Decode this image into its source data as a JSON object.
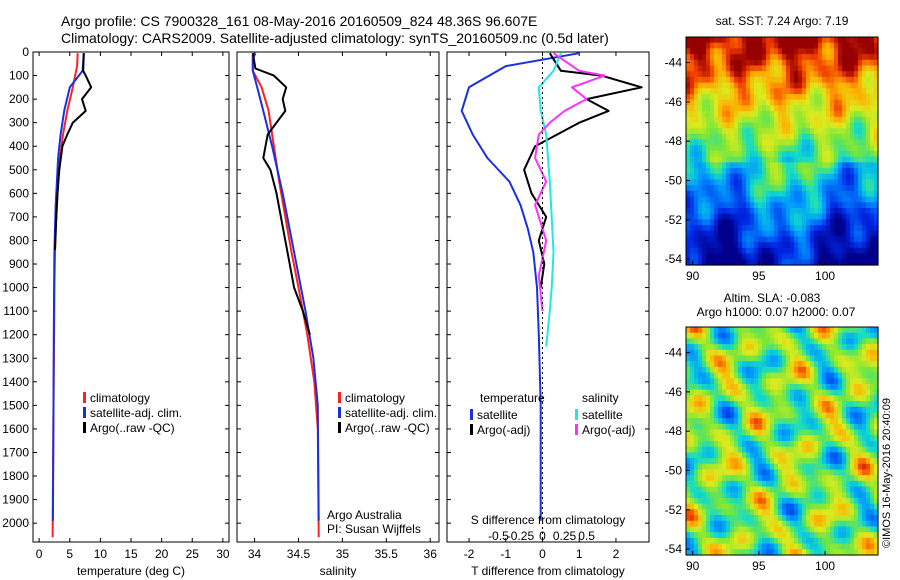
{
  "title_line1": "Argo profile: CS 7900328_161 08-May-2016 20160509_824 48.36S 96.607E",
  "title_line2": "Climatology: CARS2009. Satellite-adjusted climatology: synTS_20160509.nc (0.5d later)",
  "colors": {
    "climatology": "#ff2020",
    "satellite": "#1a2fe0",
    "argo": "#000000",
    "sal_satellite": "#20e8e8",
    "sal_argo": "#ff30ff"
  },
  "chart_data": [
    {
      "type": "line",
      "name": "temperature-panel",
      "xlabel": "temperature (deg C)",
      "ylabel": "",
      "xlim": [
        -1,
        31
      ],
      "ylim": [
        2080,
        0
      ],
      "xticks": [
        0,
        5,
        10,
        15,
        20,
        25,
        30
      ],
      "yticks": [
        0,
        100,
        200,
        300,
        400,
        500,
        600,
        700,
        800,
        900,
        1000,
        1100,
        1200,
        1300,
        1400,
        1500,
        1600,
        1700,
        1800,
        1900,
        2000
      ],
      "legend": [
        "climatology",
        "satellite-adj. clim.",
        "Argo(..raw -QC)"
      ],
      "series": [
        {
          "name": "climatology",
          "color": "#ff2020",
          "x": [
            6.3,
            6.2,
            5.5,
            4.6,
            3.9,
            3.4,
            3.1,
            2.9,
            2.7,
            2.6,
            2.5,
            2.45,
            2.35,
            2.2
          ],
          "y": [
            5,
            60,
            150,
            250,
            350,
            450,
            550,
            650,
            750,
            850,
            1000,
            1200,
            1500,
            2060
          ]
        },
        {
          "name": "satellite-adj. clim.",
          "color": "#1a2fe0",
          "x": [
            7.3,
            7.1,
            5.0,
            4.1,
            3.5,
            3.1,
            2.9,
            2.7,
            2.6,
            2.5,
            2.45,
            2.4,
            2.35,
            2.25
          ],
          "y": [
            5,
            80,
            150,
            250,
            350,
            450,
            550,
            650,
            750,
            850,
            1000,
            1200,
            1500,
            1990
          ]
        },
        {
          "name": "Argo",
          "color": "#000000",
          "x": [
            7.3,
            7.2,
            7.6,
            8.5,
            7.0,
            7.6,
            5.5,
            4.6,
            3.8,
            3.3,
            3.0,
            2.8,
            2.6
          ],
          "y": [
            5,
            80,
            100,
            150,
            200,
            250,
            300,
            350,
            400,
            500,
            600,
            700,
            840
          ]
        }
      ]
    },
    {
      "type": "line",
      "name": "salinity-panel",
      "xlabel": "salinity",
      "ylabel": "",
      "xlim": [
        33.8,
        36.1
      ],
      "ylim": [
        2080,
        0
      ],
      "xticks": [
        34,
        34.5,
        35,
        35.5,
        36
      ],
      "legend": [
        "climatology",
        "satellite-adj. clim.",
        "Argo(..raw -QC)"
      ],
      "annotation": [
        "Argo Australia",
        "PI: Susan Wijffels"
      ],
      "series": [
        {
          "name": "climatology",
          "color": "#ff2020",
          "x": [
            33.98,
            33.98,
            34.08,
            34.16,
            34.22,
            34.28,
            34.35,
            34.42,
            34.5,
            34.6,
            34.68,
            34.72,
            34.73
          ],
          "y": [
            5,
            80,
            150,
            250,
            400,
            550,
            700,
            850,
            1000,
            1200,
            1400,
            1600,
            2060
          ]
        },
        {
          "name": "satellite-adj. clim.",
          "color": "#1a2fe0",
          "x": [
            34.01,
            33.98,
            33.98,
            34.03,
            34.1,
            34.2,
            34.32,
            34.45,
            34.58,
            34.67,
            34.72,
            34.73
          ],
          "y": [
            5,
            30,
            80,
            150,
            250,
            400,
            600,
            850,
            1100,
            1300,
            1500,
            1990
          ]
        },
        {
          "name": "Argo",
          "color": "#000000",
          "x": [
            33.98,
            34.01,
            34.22,
            34.36,
            34.32,
            34.35,
            34.15,
            34.1,
            34.18,
            34.25,
            34.3,
            34.35,
            34.4,
            34.45,
            34.55,
            34.63
          ],
          "y": [
            5,
            70,
            100,
            150,
            200,
            250,
            350,
            450,
            500,
            600,
            700,
            800,
            900,
            1000,
            1100,
            1200
          ]
        }
      ]
    },
    {
      "type": "line",
      "name": "difference-panel",
      "xlabel": "T difference from climatology",
      "xlabel2": "S difference from climatology",
      "xlim": [
        -2.6,
        2.9
      ],
      "ylim": [
        2080,
        0
      ],
      "xticks": [
        -2,
        -1,
        0,
        1,
        2
      ],
      "xtick_labels": [
        "-2",
        "-1",
        "0",
        "1",
        "2"
      ],
      "xticks_s": [
        -0.5,
        -0.25,
        0,
        0.25,
        0.5
      ],
      "xtick_labels_s": [
        "-0.5",
        "-0.25",
        "0",
        "0.25",
        "0.5"
      ],
      "legend_groups": [
        "temperature",
        "salinity"
      ],
      "legend": [
        "satellite",
        "Argo(-adj)",
        "satellite",
        "Argo(-adj)"
      ],
      "series": [
        {
          "name": "temperature satellite",
          "color": "#1a2fe0",
          "x": [
            1.0,
            -1.0,
            -2.0,
            -2.2,
            -1.9,
            -1.5,
            -0.9,
            -0.6,
            -0.4,
            -0.25,
            -0.15,
            -0.1,
            -0.05,
            -0.05
          ],
          "y": [
            5,
            60,
            150,
            250,
            350,
            450,
            550,
            650,
            750,
            850,
            1000,
            1200,
            1500,
            1990
          ]
        },
        {
          "name": "temperature Argo(-adj)",
          "color": "#000000",
          "x": [
            0.2,
            0.5,
            1.6,
            2.7,
            1.2,
            1.8,
            1.0,
            0.4,
            -0.2,
            -0.5,
            -0.3,
            0.1,
            -0.1,
            0.05,
            -0.05
          ],
          "y": [
            5,
            80,
            100,
            150,
            200,
            250,
            300,
            350,
            400,
            500,
            600,
            700,
            800,
            900,
            1000
          ]
        },
        {
          "name": "salinity satellite",
          "color": "#20e8e8",
          "x": [
            0.5,
            0.3,
            -0.1,
            -0.05,
            0.1,
            0.15,
            0.2,
            0.25,
            0.3,
            0.25,
            0.2,
            0.1
          ],
          "y": [
            5,
            80,
            150,
            250,
            350,
            450,
            550,
            700,
            850,
            1000,
            1100,
            1250
          ]
        },
        {
          "name": "salinity Argo(-adj)",
          "color": "#ff30ff",
          "x": [
            0.3,
            1.0,
            1.7,
            0.8,
            1.2,
            0.6,
            0.2,
            -0.1,
            -0.2,
            0.1,
            -0.2,
            0.1,
            -0.1,
            0.0
          ],
          "y": [
            5,
            80,
            100,
            150,
            200,
            250,
            300,
            350,
            450,
            550,
            650,
            800,
            950,
            1100
          ]
        }
      ]
    },
    {
      "type": "heatmap",
      "name": "sst-map",
      "title": "sat. SST: 7.24  Argo: 7.19",
      "xticks": [
        90,
        95,
        100
      ],
      "yticks": [
        -44,
        -46,
        -48,
        -50,
        -52,
        -54
      ],
      "xlim": [
        89.5,
        104
      ],
      "ylim": [
        -54.3,
        -42.7
      ]
    },
    {
      "type": "heatmap",
      "name": "sla-map",
      "title_line1": "Altim. SLA: -0.083",
      "title_line2": "Argo h1000: 0.07 h2000: 0.07",
      "xticks": [
        90,
        95,
        100
      ],
      "yticks": [
        -44,
        -46,
        -48,
        -50,
        -52,
        -54
      ],
      "xlim": [
        89.5,
        104
      ],
      "ylim": [
        -54.3,
        -42.7
      ]
    }
  ],
  "side_label": "©IMOS 16-May-2016 20:40:09"
}
